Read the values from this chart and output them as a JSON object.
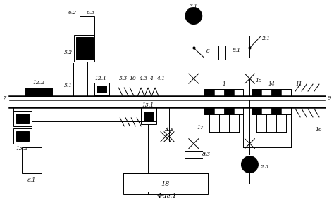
{
  "title": "Фиг.1",
  "bg_color": "#ffffff",
  "line_color": "#000000",
  "fig_width": 4.74,
  "fig_height": 2.88,
  "dpi": 100
}
